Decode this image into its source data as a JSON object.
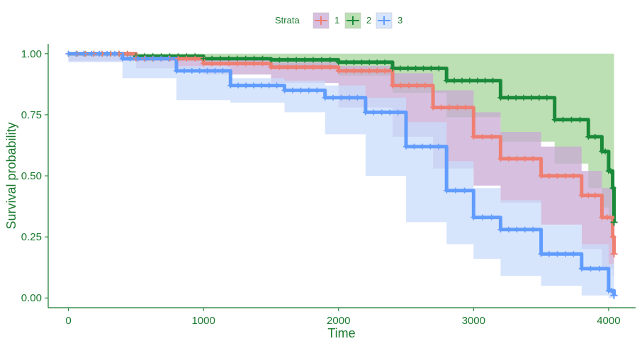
{
  "chart_data": {
    "type": "line",
    "subtype": "kaplan-meier survival curves with confidence bands",
    "xlabel": "Time",
    "ylabel": "Survival probability",
    "xlim": [
      -150,
      4200
    ],
    "ylim": [
      -0.04,
      1.04
    ],
    "x_ticks": [
      0,
      1000,
      2000,
      3000,
      4000
    ],
    "x_tick_labels": [
      "0",
      "1000",
      "2000",
      "3000",
      "4000"
    ],
    "y_ticks": [
      0,
      0.25,
      0.5,
      0.75,
      1.0
    ],
    "y_tick_labels": [
      "0.00",
      "0.25",
      "0.50",
      "0.75",
      "1.00"
    ],
    "grid": false,
    "legend": {
      "title": "Strata",
      "position": "top",
      "labels": [
        "1",
        "2",
        "3"
      ]
    },
    "series": [
      {
        "name": "1",
        "color": "#ee7f72",
        "band_color": "#c9a9d4",
        "x": [
          0,
          500,
          1000,
          1500,
          2000,
          2400,
          2700,
          3000,
          3200,
          3500,
          3800,
          3950,
          4030,
          4040
        ],
        "y": [
          1.0,
          0.98,
          0.96,
          0.945,
          0.93,
          0.87,
          0.78,
          0.66,
          0.57,
          0.5,
          0.42,
          0.33,
          0.25,
          0.18
        ],
        "lower": [
          1.0,
          0.97,
          0.94,
          0.915,
          0.88,
          0.78,
          0.66,
          0.53,
          0.46,
          0.39,
          0.3,
          0.2,
          0.12,
          0.09
        ],
        "upper": [
          1.0,
          0.99,
          0.975,
          0.965,
          0.95,
          0.92,
          0.85,
          0.76,
          0.68,
          0.62,
          0.52,
          0.45,
          0.38,
          0.3
        ]
      },
      {
        "name": "2",
        "color": "#1a8a3a",
        "band_color": "#a6d49a",
        "x": [
          0,
          500,
          1000,
          1500,
          2000,
          2400,
          2800,
          3200,
          3600,
          3850,
          3950,
          4000,
          4030,
          4040
        ],
        "y": [
          1.0,
          0.99,
          0.98,
          0.975,
          0.965,
          0.94,
          0.89,
          0.82,
          0.73,
          0.66,
          0.6,
          0.52,
          0.45,
          0.31
        ],
        "lower": [
          1.0,
          0.985,
          0.97,
          0.96,
          0.95,
          0.91,
          0.84,
          0.74,
          0.64,
          0.55,
          0.45,
          0.37,
          0.32,
          0.31
        ],
        "upper": [
          1.0,
          1.0,
          1.0,
          1.0,
          1.0,
          1.0,
          1.0,
          1.0,
          1.0,
          1.0,
          1.0,
          1.0,
          1.0,
          1.0
        ]
      },
      {
        "name": "3",
        "color": "#619cff",
        "band_color": "#c9dcfb",
        "x": [
          0,
          400,
          800,
          1200,
          1600,
          1900,
          2200,
          2500,
          2800,
          3000,
          3200,
          3500,
          3800,
          4000,
          4040
        ],
        "y": [
          1.0,
          0.98,
          0.93,
          0.87,
          0.85,
          0.82,
          0.76,
          0.62,
          0.44,
          0.33,
          0.28,
          0.18,
          0.12,
          0.03,
          0.01
        ],
        "lower": [
          1.0,
          0.965,
          0.9,
          0.81,
          0.8,
          0.76,
          0.67,
          0.5,
          0.31,
          0.22,
          0.16,
          0.09,
          0.05,
          0.01,
          0.0
        ],
        "upper": [
          1.0,
          0.99,
          0.95,
          0.9,
          0.89,
          0.87,
          0.82,
          0.72,
          0.56,
          0.45,
          0.4,
          0.3,
          0.22,
          0.14,
          0.09
        ]
      }
    ]
  }
}
